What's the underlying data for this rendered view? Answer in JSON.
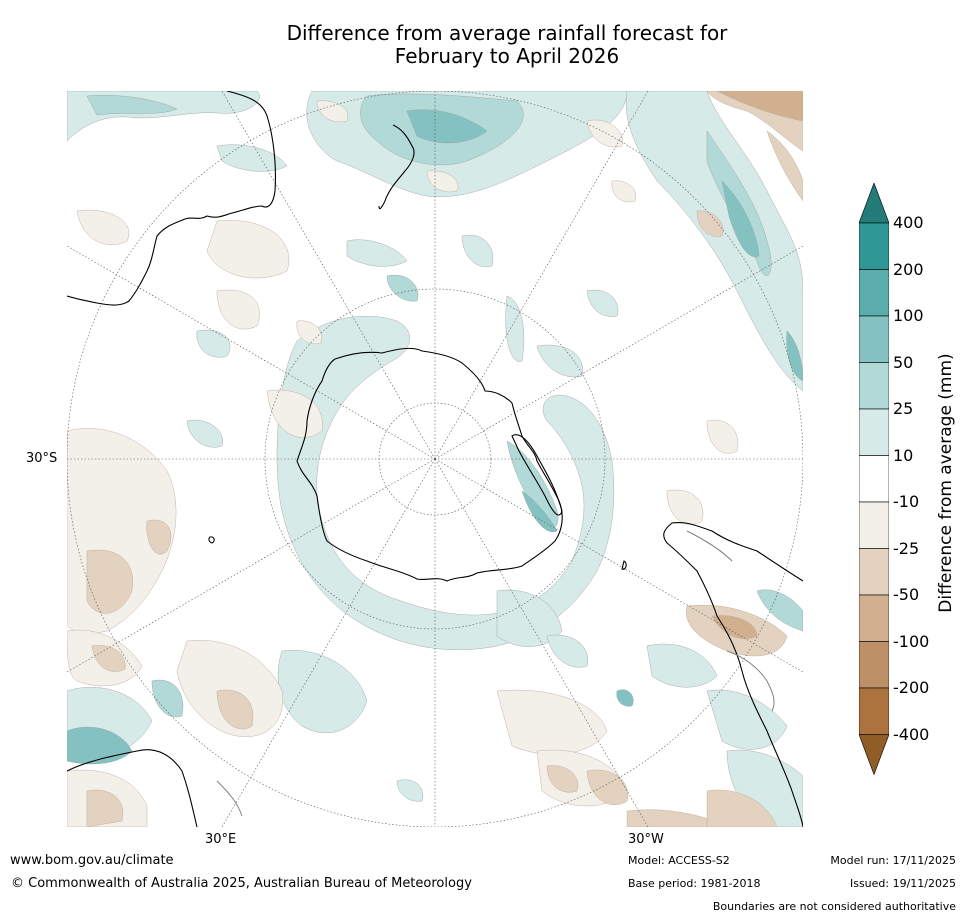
{
  "title": {
    "line1": "Difference from average rainfall forecast for",
    "line2": "February to April 2026"
  },
  "map": {
    "projection": "south-polar-stereographic",
    "graticule_labels": {
      "lat": "30°S",
      "lon_left": "30°E",
      "lon_right": "30°W"
    },
    "land_outline_color": "#000000",
    "boundary_color": "#808080"
  },
  "colorbar": {
    "title": "Difference from average (mm)",
    "tick_labels": [
      "400",
      "200",
      "100",
      "50",
      "25",
      "10",
      "-10",
      "-25",
      "-50",
      "-100",
      "-200",
      "-400"
    ],
    "bins": [
      {
        "label": "above 400",
        "color": "#237c78"
      },
      {
        "label": "200 to 400",
        "color": "#2f9896"
      },
      {
        "label": "100 to 200",
        "color": "#5aacad"
      },
      {
        "label": "50 to 100",
        "color": "#84c2c1"
      },
      {
        "label": "25 to 50",
        "color": "#b1d9d7"
      },
      {
        "label": "10 to 25",
        "color": "#d6eae8"
      },
      {
        "label": "-10 to 10",
        "color": "#ffffff"
      },
      {
        "label": "-25 to -10",
        "color": "#f3efe9"
      },
      {
        "label": "-50 to -25",
        "color": "#e3d2c0"
      },
      {
        "label": "-100 to -50",
        "color": "#d0b08f"
      },
      {
        "label": "-200 to -100",
        "color": "#be9067"
      },
      {
        "label": "-400 to -200",
        "color": "#ac733e"
      },
      {
        "label": "below -400",
        "color": "#915d26"
      }
    ]
  },
  "footer": {
    "website": "www.bom.gov.au/climate",
    "copyright": "© Commonwealth of Australia 2025, Australian Bureau of Meteorology",
    "model": "Model: ACCESS-S2",
    "base_period": "Base period: 1981-2018",
    "model_run": "Model run: 17/11/2025",
    "issued": "Issued: 19/11/2025",
    "disclaimer": "Boundaries are not considered authoritative"
  }
}
